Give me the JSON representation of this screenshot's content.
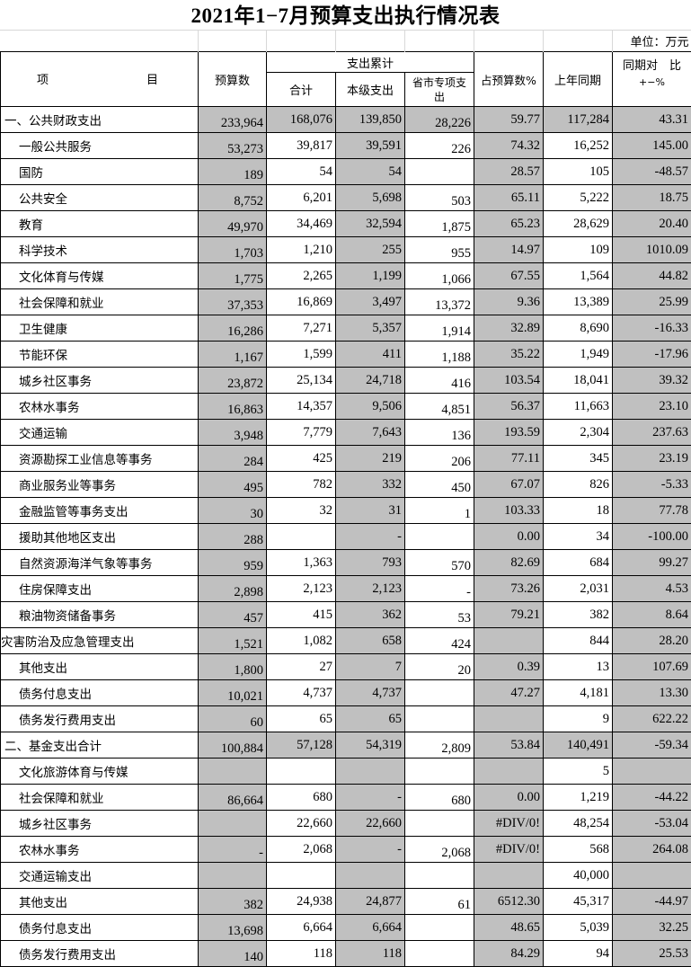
{
  "title": "2021年1−7月预算支出执行情况表",
  "unit": "单位：万元",
  "headers": {
    "item_left": "项",
    "item_right": "目",
    "budget": "预算数",
    "cumulative": "支出累计",
    "total": "合计",
    "own": "本级支出",
    "provincial": "省市专项支出",
    "pct": "占预算数%",
    "last_year": "上年同期",
    "yoy": "同期对　比",
    "yoy_sub": "+−%"
  },
  "colors": {
    "shade": "#c0c0c0",
    "border": "#000000"
  },
  "rows": [
    {
      "item": "一、公共财政支出",
      "budget": "233,964",
      "total": "168,076",
      "own": "139,850",
      "prov": "28,226",
      "pct": "59.77",
      "last": "117,284",
      "yoy": "43.31"
    },
    {
      "item": "一般公共服务",
      "budget": "53,273",
      "total": "39,817",
      "own": "39,591",
      "prov": "226",
      "pct": "74.32",
      "last": "16,252",
      "yoy": "145.00"
    },
    {
      "item": "国防",
      "budget": "189",
      "total": "54",
      "own": "54",
      "prov": "",
      "pct": "28.57",
      "last": "105",
      "yoy": "-48.57"
    },
    {
      "item": "公共安全",
      "budget": "8,752",
      "total": "6,201",
      "own": "5,698",
      "prov": "503",
      "pct": "65.11",
      "last": "5,222",
      "yoy": "18.75"
    },
    {
      "item": "教育",
      "budget": "49,970",
      "total": "34,469",
      "own": "32,594",
      "prov": "1,875",
      "pct": "65.23",
      "last": "28,629",
      "yoy": "20.40"
    },
    {
      "item": "科学技术",
      "budget": "1,703",
      "total": "1,210",
      "own": "255",
      "prov": "955",
      "pct": "14.97",
      "last": "109",
      "yoy": "1010.09"
    },
    {
      "item": "文化体育与传媒",
      "budget": "1,775",
      "total": "2,265",
      "own": "1,199",
      "prov": "1,066",
      "pct": "67.55",
      "last": "1,564",
      "yoy": "44.82"
    },
    {
      "item": "社会保障和就业",
      "budget": "37,353",
      "total": "16,869",
      "own": "3,497",
      "prov": "13,372",
      "pct": "9.36",
      "last": "13,389",
      "yoy": "25.99"
    },
    {
      "item": "卫生健康",
      "budget": "16,286",
      "total": "7,271",
      "own": "5,357",
      "prov": "1,914",
      "pct": "32.89",
      "last": "8,690",
      "yoy": "-16.33"
    },
    {
      "item": "节能环保",
      "budget": "1,167",
      "total": "1,599",
      "own": "411",
      "prov": "1,188",
      "pct": "35.22",
      "last": "1,949",
      "yoy": "-17.96"
    },
    {
      "item": "城乡社区事务",
      "budget": "23,872",
      "total": "25,134",
      "own": "24,718",
      "prov": "416",
      "pct": "103.54",
      "last": "18,041",
      "yoy": "39.32"
    },
    {
      "item": "农林水事务",
      "budget": "16,863",
      "total": "14,357",
      "own": "9,506",
      "prov": "4,851",
      "pct": "56.37",
      "last": "11,663",
      "yoy": "23.10"
    },
    {
      "item": "交通运输",
      "budget": "3,948",
      "total": "7,779",
      "own": "7,643",
      "prov": "136",
      "pct": "193.59",
      "last": "2,304",
      "yoy": "237.63"
    },
    {
      "item": "资源勘探工业信息等事务",
      "budget": "284",
      "total": "425",
      "own": "219",
      "prov": "206",
      "pct": "77.11",
      "last": "345",
      "yoy": "23.19"
    },
    {
      "item": "商业服务业等事务",
      "budget": "495",
      "total": "782",
      "own": "332",
      "prov": "450",
      "pct": "67.07",
      "last": "826",
      "yoy": "-5.33"
    },
    {
      "item": "金融监管等事务支出",
      "budget": "30",
      "total": "32",
      "own": "31",
      "prov": "1",
      "pct": "103.33",
      "last": "18",
      "yoy": "77.78"
    },
    {
      "item": "援助其他地区支出",
      "budget": "288",
      "total": "",
      "own": "-",
      "prov": "",
      "pct": "0.00",
      "last": "34",
      "yoy": "-100.00"
    },
    {
      "item": "自然资源海洋气象等事务",
      "budget": "959",
      "total": "1,363",
      "own": "793",
      "prov": "570",
      "pct": "82.69",
      "last": "684",
      "yoy": "99.27"
    },
    {
      "item": "住房保障支出",
      "budget": "2,898",
      "total": "2,123",
      "own": "2,123",
      "prov": "-",
      "pct": "73.26",
      "last": "2,031",
      "yoy": "4.53"
    },
    {
      "item": "粮油物资储备事务",
      "budget": "457",
      "total": "415",
      "own": "362",
      "prov": "53",
      "pct": "79.21",
      "last": "382",
      "yoy": "8.64"
    },
    {
      "item": "灾害防治及应急管理支出",
      "budget": "1,521",
      "total": "1,082",
      "own": "658",
      "prov": "424",
      "pct": "",
      "last": "844",
      "yoy": "28.20"
    },
    {
      "item": "其他支出",
      "budget": "1,800",
      "total": "27",
      "own": "7",
      "prov": "20",
      "pct": "0.39",
      "last": "13",
      "yoy": "107.69"
    },
    {
      "item": "债务付息支出",
      "budget": "10,021",
      "total": "4,737",
      "own": "4,737",
      "prov": "",
      "pct": "47.27",
      "last": "4,181",
      "yoy": "13.30"
    },
    {
      "item": "债务发行费用支出",
      "budget": "60",
      "total": "65",
      "own": "65",
      "prov": "",
      "pct": "",
      "last": "9",
      "yoy": "622.22"
    },
    {
      "item": "二、基金支出合计",
      "budget": "100,884",
      "total": "57,128",
      "own": "54,319",
      "prov": "2,809",
      "pct": "53.84",
      "last": "140,491",
      "yoy": "-59.34"
    },
    {
      "item": "文化旅游体育与传媒",
      "budget": "",
      "total": "",
      "own": "",
      "prov": "",
      "pct": "",
      "last": "5",
      "yoy": ""
    },
    {
      "item": "社会保障和就业",
      "budget": "86,664",
      "total": "680",
      "own": "-",
      "prov": "680",
      "pct": "0.00",
      "last": "1,219",
      "yoy": "-44.22"
    },
    {
      "item": "城乡社区事务",
      "budget": "",
      "total": "22,660",
      "own": "22,660",
      "prov": "",
      "pct": "#DIV/0!",
      "last": "48,254",
      "yoy": "-53.04"
    },
    {
      "item": "农林水事务",
      "budget": "-",
      "total": "2,068",
      "own": "-",
      "prov": "2,068",
      "pct": "#DIV/0!",
      "last": "568",
      "yoy": "264.08"
    },
    {
      "item": "交通运输支出",
      "budget": "",
      "total": "",
      "own": "",
      "prov": "",
      "pct": "",
      "last": "40,000",
      "yoy": ""
    },
    {
      "item": "其他支出",
      "budget": "382",
      "total": "24,938",
      "own": "24,877",
      "prov": "61",
      "pct": "6512.30",
      "last": "45,317",
      "yoy": "-44.97"
    },
    {
      "item": "债务付息支出",
      "budget": "13,698",
      "total": "6,664",
      "own": "6,664",
      "prov": "",
      "pct": "48.65",
      "last": "5,039",
      "yoy": "32.25"
    },
    {
      "item": "债务发行费用支出",
      "budget": "140",
      "total": "118",
      "own": "118",
      "prov": "",
      "pct": "84.29",
      "last": "94",
      "yoy": "25.53"
    }
  ]
}
